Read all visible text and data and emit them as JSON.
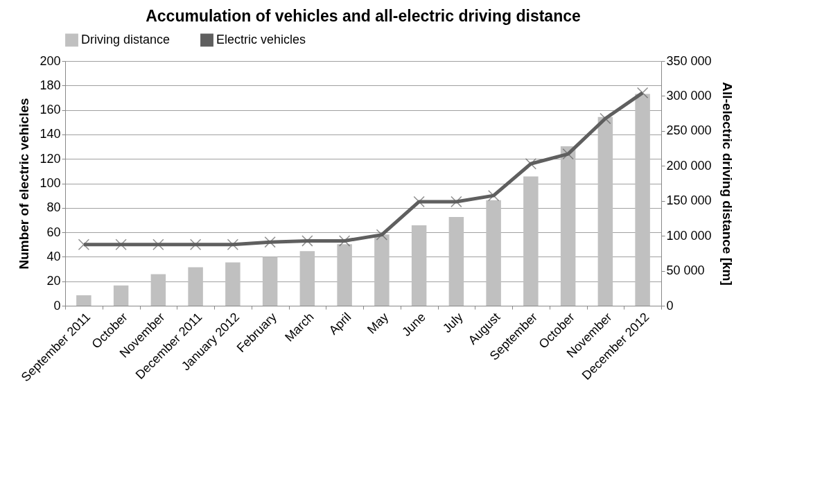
{
  "chart_data": {
    "type": "bar",
    "title": "Accumulation of vehicles and all-electric driving distance",
    "ylabel": "Number of electric vehicles",
    "y2label": "All-electric driving distance [km]",
    "categories": [
      "September 2011",
      "October",
      "November",
      "December 2011",
      "January 2012",
      "February",
      "March",
      "April",
      "May",
      "June",
      "July",
      "August",
      "September",
      "October",
      "November",
      "December 2012"
    ],
    "series": [
      {
        "name": "Driving distance",
        "axis": "y2",
        "color": "#c0c0c0",
        "values": [
          15000,
          29000,
          45000,
          55000,
          62000,
          70000,
          78000,
          88000,
          102000,
          115000,
          127000,
          151000,
          185000,
          228000,
          270000,
          303000
        ]
      },
      {
        "name": "Electric vehicles",
        "type": "line",
        "color": "#5f5f5f",
        "marker": "cross",
        "values": [
          50,
          50,
          50,
          50,
          50,
          52,
          53,
          53,
          58,
          85,
          85,
          90,
          116,
          124,
          153,
          174
        ]
      }
    ],
    "ylim": [
      0,
      200
    ],
    "yticks": [
      0,
      20,
      40,
      60,
      80,
      100,
      120,
      140,
      160,
      180,
      200
    ],
    "y2lim": [
      0,
      350000
    ],
    "y2ticks": [
      {
        "value": 0,
        "label": "0"
      },
      {
        "value": 50000,
        "label": "50 000"
      },
      {
        "value": 100000,
        "label": "100 000"
      },
      {
        "value": 150000,
        "label": "150 000"
      },
      {
        "value": 200000,
        "label": "200 000"
      },
      {
        "value": 250000,
        "label": "250 000"
      },
      {
        "value": 300000,
        "label": "300 000"
      },
      {
        "value": 350000,
        "label": "350 000"
      }
    ],
    "grid": "y",
    "legend": "top"
  }
}
